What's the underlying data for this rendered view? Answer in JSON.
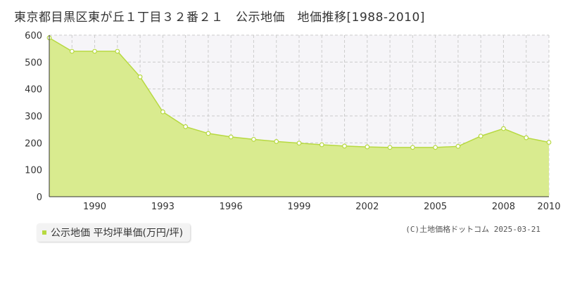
{
  "title": "東京都目黒区東が丘１丁目３２番２１　公示地価　地価推移[1988-2010]",
  "legend": {
    "label": "公示地価 平均坪単価(万円/坪)",
    "color": "#b7d941"
  },
  "copyright": "(C)土地価格ドットコム 2025-03-21",
  "colors": {
    "area_fill": "#d9eb8f",
    "line": "#b7d941",
    "point_fill": "#ffffff",
    "grid": "#cccccc",
    "plot_bg_upper": "#f6f5f8",
    "axis": "#333333"
  },
  "chart_data": {
    "type": "area",
    "x": [
      1988,
      1989,
      1990,
      1991,
      1992,
      1993,
      1994,
      1995,
      1996,
      1997,
      1998,
      1999,
      2000,
      2001,
      2002,
      2003,
      2004,
      2005,
      2006,
      2007,
      2008,
      2009,
      2010
    ],
    "series": [
      {
        "name": "公示地価 平均坪単価(万円/坪)",
        "values": [
          590,
          540,
          540,
          540,
          445,
          315,
          260,
          235,
          222,
          213,
          205,
          199,
          193,
          188,
          185,
          183,
          183,
          183,
          187,
          225,
          253,
          219,
          202
        ]
      }
    ],
    "xlim": [
      1988,
      2010
    ],
    "ylim": [
      0,
      600
    ],
    "yticks": [
      "0",
      "100",
      "200",
      "300",
      "400",
      "500",
      "600"
    ],
    "xticks": [
      "1990",
      "1993",
      "1996",
      "1999",
      "2002",
      "2005",
      "2008",
      "2010"
    ],
    "grid": true
  }
}
